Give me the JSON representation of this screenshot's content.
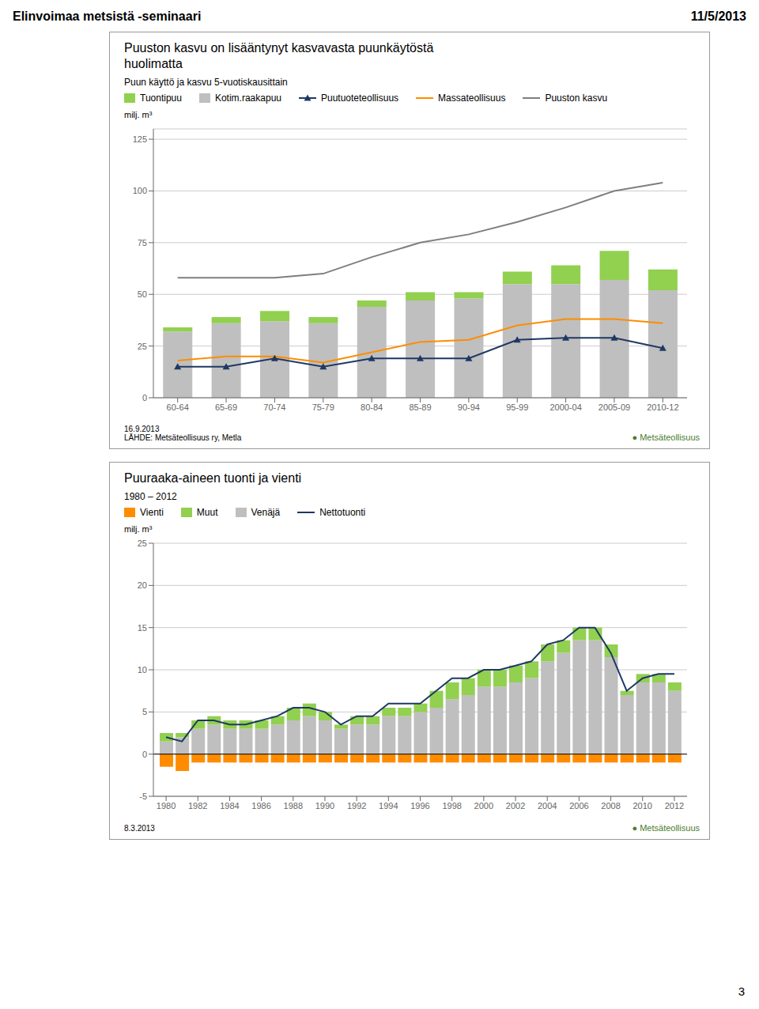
{
  "annotations": [
    "Elinvoimaa metsistä -seminaari",
    "11/5/2013",
    "3"
  ],
  "chart_data": [
    {
      "type": "bar",
      "title": "Puuston kasvu on lisääntynyt kasvavasta puunkäytöstä\nhuolimatta",
      "subtitle": "Puun käyttö ja kasvu 5-vuotiskausittain",
      "y_label": "milj. m³",
      "categories": [
        "60-64",
        "65-69",
        "70-74",
        "75-79",
        "80-84",
        "85-89",
        "90-94",
        "95-99",
        "2000-04",
        "2005-09",
        "2010-12"
      ],
      "series": [
        {
          "name": "Tuontipuu",
          "type": "bar",
          "color": "#92d050",
          "values": [
            2,
            3,
            5,
            3,
            3,
            4,
            3,
            6,
            9,
            14,
            10
          ]
        },
        {
          "name": "Kotim.raakapuu",
          "type": "bar",
          "color": "#bfbfbf",
          "values": [
            32,
            36,
            37,
            36,
            44,
            47,
            48,
            55,
            55,
            57,
            52
          ]
        },
        {
          "name": "Puutuoteteollisuus",
          "type": "line",
          "marker": "triangle",
          "color": "#1f3864",
          "values": [
            15,
            15,
            19,
            15,
            19,
            19,
            19,
            28,
            29,
            29,
            24
          ]
        },
        {
          "name": "Massateollisuus",
          "type": "line",
          "color": "#ff8c00",
          "values": [
            18,
            20,
            20,
            17,
            22,
            27,
            28,
            35,
            38,
            38,
            36
          ]
        },
        {
          "name": "Puuston kasvu",
          "type": "line",
          "color": "#7f7f7f",
          "values": [
            58,
            58,
            58,
            60,
            68,
            75,
            79,
            85,
            92,
            100,
            104
          ]
        }
      ],
      "stacked": true,
      "ylim": [
        0,
        130
      ],
      "yticks": [
        0,
        25,
        50,
        75,
        100,
        125
      ],
      "grid": true,
      "annotations": [
        "16.9.2013",
        "LÄHDE: Metsäteollisuus ry, Metla",
        {
          "text": "● Metsäteollisuus",
          "color": "#4a7c2f"
        }
      ]
    },
    {
      "type": "bar",
      "title": "Puuraaka-aineen tuonti ja vienti",
      "subtitle": "1980 – 2012",
      "y_label": "milj. m³",
      "x": [
        1980,
        1981,
        1982,
        1983,
        1984,
        1985,
        1986,
        1987,
        1988,
        1989,
        1990,
        1991,
        1992,
        1993,
        1994,
        1995,
        1996,
        1997,
        1998,
        1999,
        2000,
        2001,
        2002,
        2003,
        2004,
        2005,
        2006,
        2007,
        2008,
        2009,
        2010,
        2011,
        2012
      ],
      "xlim": [
        1979.2,
        2012.8
      ],
      "xticks": [
        1980,
        1982,
        1984,
        1986,
        1988,
        1990,
        1992,
        1994,
        1996,
        1998,
        2000,
        2002,
        2004,
        2006,
        2008,
        2010,
        2012
      ],
      "series": [
        {
          "name": "Vienti",
          "type": "bar",
          "color": "#ff8c00",
          "values": [
            -1.5,
            -2,
            -1,
            -1,
            -1,
            -1,
            -1,
            -1,
            -1,
            -1,
            -1,
            -1,
            -1,
            -1,
            -1,
            -1,
            -1,
            -1,
            -1,
            -1,
            -1,
            -1,
            -1,
            -1,
            -1,
            -1,
            -1,
            -1,
            -1,
            -1,
            -1,
            -1,
            -1
          ]
        },
        {
          "name": "Muut",
          "type": "bar",
          "color": "#92d050",
          "values": [
            1,
            0.5,
            1,
            1,
            1,
            1,
            1,
            1,
            1.5,
            1.5,
            1,
            0.5,
            1,
            1,
            1,
            1,
            1,
            2,
            2,
            2,
            2,
            2,
            2,
            2,
            2,
            1.5,
            1.5,
            1.5,
            1.5,
            0.5,
            1,
            1,
            1
          ]
        },
        {
          "name": "Venäjä",
          "type": "bar",
          "color": "#bfbfbf",
          "values": [
            1.5,
            2,
            3,
            3.5,
            3,
            3,
            3,
            3.5,
            4,
            4.5,
            4,
            3,
            3.5,
            3.5,
            4.5,
            4.5,
            5,
            5.5,
            6.5,
            7,
            8,
            8,
            8.5,
            9,
            11,
            12,
            13.5,
            13.5,
            11.5,
            7,
            8.5,
            8.5,
            7.5
          ]
        },
        {
          "name": "Nettotuonti",
          "type": "line",
          "color": "#1f3864",
          "values": [
            2,
            1.5,
            4,
            4,
            3.5,
            3.5,
            4,
            4.5,
            5.5,
            5.5,
            5,
            3.5,
            4.5,
            4.5,
            6,
            6,
            6,
            7.5,
            9,
            9,
            10,
            10,
            10.5,
            11,
            13,
            13.5,
            15,
            15,
            12,
            7.5,
            9,
            9.5,
            9.5
          ]
        }
      ],
      "stacked": true,
      "ylim": [
        -5,
        25
      ],
      "yticks": [
        -5,
        0,
        5,
        10,
        15,
        20,
        25
      ],
      "grid": true,
      "annotations": [
        "8.3.2013",
        {
          "text": "● Metsäteollisuus",
          "color": "#4a7c2f"
        }
      ]
    }
  ]
}
